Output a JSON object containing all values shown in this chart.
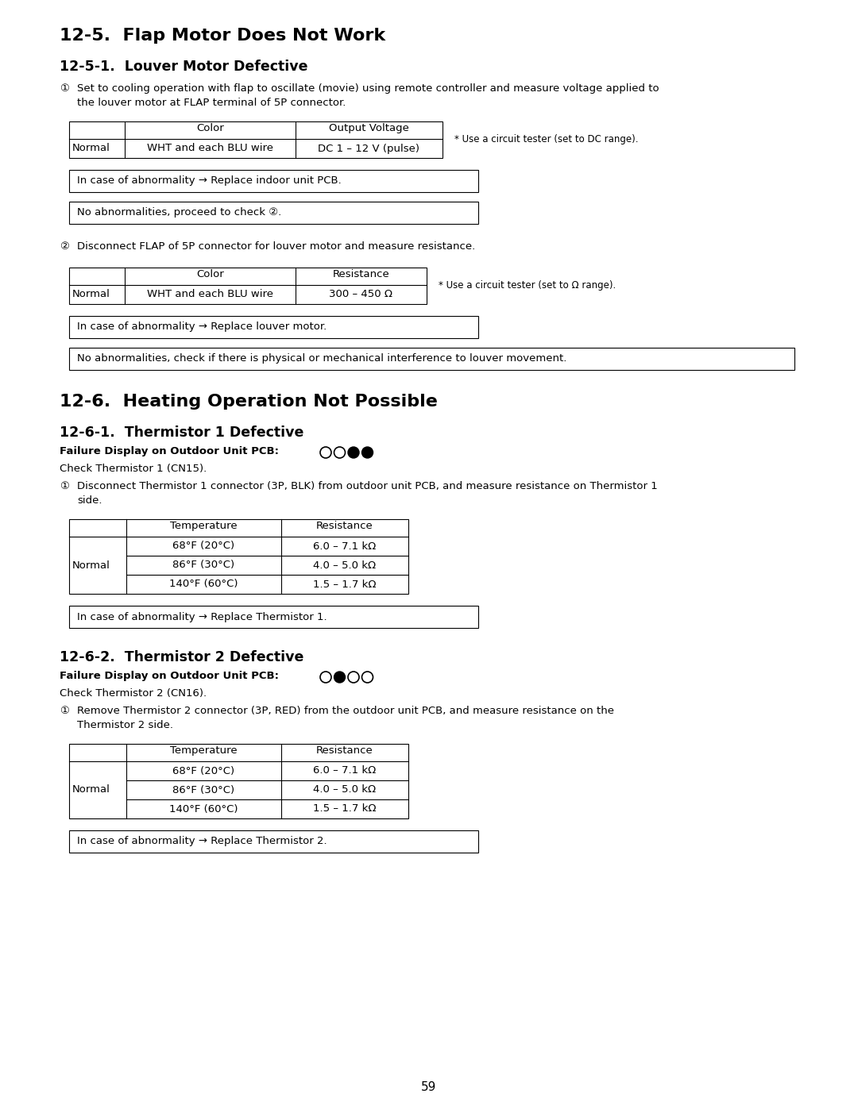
{
  "title1": "12-5.  Flap Motor Does Not Work",
  "subtitle1": "12-5-1.  Louver Motor Defective",
  "circ1": "①",
  "circ2": "②",
  "section1_text1a": "Set to cooling operation with flap to oscillate (movie) using remote controller and measure voltage applied to",
  "section1_text1b": "the louver motor at FLAP terminal of 5P connector.",
  "table1_headers": [
    "Color",
    "Output Voltage"
  ],
  "table1_row_label": "Normal",
  "table1_row": [
    "WHT and each BLU wire",
    "DC 1 – 12 V (pulse)"
  ],
  "table1_note": "* Use a circuit tester (set to DC range).",
  "box1a": "In case of abnormality → Replace indoor unit PCB.",
  "box1b": "No abnormalities, proceed to check ②.",
  "section1_text2": "Disconnect FLAP of 5P connector for louver motor and measure resistance.",
  "table2_headers": [
    "Color",
    "Resistance"
  ],
  "table2_row_label": "Normal",
  "table2_row": [
    "WHT and each BLU wire",
    "300 – 450 Ω"
  ],
  "table2_note": "* Use a circuit tester (set to Ω range).",
  "box2a": "In case of abnormality → Replace louver motor.",
  "box2b": "No abnormalities, check if there is physical or mechanical interference to louver movement.",
  "title2": "12-6.  Heating Operation Not Possible",
  "subtitle2": "12-6-1.  Thermistor 1 Defective",
  "failure1_label": "Failure Display on Outdoor Unit PCB:",
  "failure1_circles": [
    false,
    false,
    true,
    true
  ],
  "check1": "Check Thermistor 1 (CN15).",
  "section3_text1": "Disconnect Thermistor 1 connector (3P, BLK) from outdoor unit PCB, and measure resistance on Thermistor 1",
  "section3_text2": "side.",
  "table3_headers": [
    "Temperature",
    "Resistance"
  ],
  "table3_row_label": "Normal",
  "table3_rows": [
    [
      "68°F (20°C)",
      "6.0 – 7.1 kΩ"
    ],
    [
      "86°F (30°C)",
      "4.0 – 5.0 kΩ"
    ],
    [
      "140°F (60°C)",
      "1.5 – 1.7 kΩ"
    ]
  ],
  "box3a": "In case of abnormality → Replace Thermistor 1.",
  "subtitle3": "12-6-2.  Thermistor 2 Defective",
  "failure2_label": "Failure Display on Outdoor Unit PCB:",
  "failure2_circles": [
    false,
    true,
    false,
    false
  ],
  "check2": "Check Thermistor 2 (CN16).",
  "section4_text1": "Remove Thermistor 2 connector (3P, RED) from the outdoor unit PCB, and measure resistance on the",
  "section4_text2": "Thermistor 2 side.",
  "table4_headers": [
    "Temperature",
    "Resistance"
  ],
  "table4_row_label": "Normal",
  "table4_rows": [
    [
      "68°F (20°C)",
      "6.0 – 7.1 kΩ"
    ],
    [
      "86°F (30°C)",
      "4.0 – 5.0 kΩ"
    ],
    [
      "140°F (60°C)",
      "1.5 – 1.7 kΩ"
    ]
  ],
  "box4a": "In case of abnormality → Replace Thermistor 2.",
  "page_number": "59",
  "bg_color": "#ffffff",
  "text_color": "#000000"
}
